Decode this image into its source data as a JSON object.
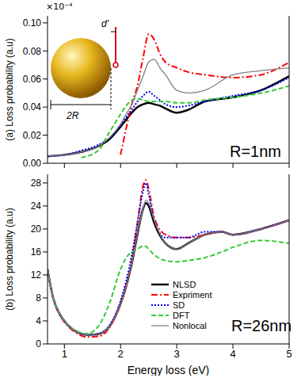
{
  "chart_data": [
    {
      "type": "line",
      "y_label": "(a) Loss probability (a.u)",
      "annotations": [
        "R=1nm",
        "×10⁻⁴",
        "d'",
        "2R"
      ],
      "tick_labels": "y",
      "x": [
        0.7,
        1.0,
        1.3,
        1.6,
        1.8,
        2.0,
        2.1,
        2.2,
        2.3,
        2.4,
        2.5,
        2.6,
        2.7,
        2.8,
        3.0,
        3.2,
        3.5,
        4.0,
        4.5,
        5.0
      ],
      "xlim": [
        0.7,
        5
      ],
      "xticks": [
        1,
        2,
        3,
        4,
        5
      ],
      "ylim": [
        0,
        0.105
      ],
      "yticks": [
        {
          "value": 0,
          "label": "0.00"
        },
        {
          "value": 0.02,
          "label": "0.02"
        },
        {
          "value": 0.04,
          "label": "0.04"
        },
        {
          "value": 0.06,
          "label": "0.06"
        },
        {
          "value": 0.08,
          "label": "0.08"
        },
        {
          "value": 0.1,
          "label": "0.10"
        }
      ],
      "series": [
        {
          "name": "NLSD",
          "color": "#000000",
          "line_style": "solid",
          "values": [
            0.005,
            0.006,
            0.008,
            0.012,
            0.017,
            0.026,
            0.031,
            0.036,
            0.04,
            0.042,
            0.043,
            0.042,
            0.041,
            0.039,
            0.036,
            0.038,
            0.044,
            0.047,
            0.052,
            0.062
          ]
        },
        {
          "name": "Expriment",
          "color": "#ff0000",
          "line_style": "dashdot",
          "values": [
            null,
            null,
            null,
            null,
            null,
            0.006,
            0.025,
            0.042,
            0.055,
            0.075,
            0.092,
            0.088,
            0.078,
            0.072,
            0.068,
            0.065,
            0.063,
            0.061,
            0.063,
            0.072
          ]
        },
        {
          "name": "SD",
          "color": "#0000ff",
          "line_style": "dotted",
          "values": [
            0.005,
            0.006,
            0.009,
            0.013,
            0.018,
            0.027,
            0.033,
            0.038,
            0.044,
            0.048,
            0.051,
            0.048,
            0.045,
            0.042,
            0.04,
            0.041,
            0.044,
            0.048,
            0.052,
            0.061
          ]
        },
        {
          "name": "DFT",
          "color": "#33cc33",
          "line_style": "dashed",
          "values": [
            null,
            null,
            0.004,
            0.009,
            0.022,
            0.035,
            0.041,
            0.045,
            0.046,
            0.045,
            0.044,
            0.044,
            0.044,
            0.044,
            0.043,
            0.043,
            0.045,
            0.047,
            0.05,
            0.055
          ]
        },
        {
          "name": "Nonlocal",
          "color": "#808080",
          "line_style": "solid",
          "values": [
            0.005,
            0.006,
            0.008,
            0.012,
            0.018,
            0.028,
            0.035,
            0.042,
            0.052,
            0.062,
            0.072,
            0.074,
            0.068,
            0.063,
            0.052,
            0.05,
            0.052,
            0.063,
            0.066,
            0.068
          ]
        }
      ]
    },
    {
      "type": "line",
      "x_label": "Energy loss (eV)",
      "y_label": "(b) Loss probability (a.u)",
      "annotations": [
        "R=26nm"
      ],
      "legend": "lower right",
      "x": [
        0.7,
        0.8,
        0.9,
        1.0,
        1.2,
        1.4,
        1.6,
        1.8,
        2.0,
        2.1,
        2.2,
        2.3,
        2.4,
        2.45,
        2.5,
        2.6,
        2.8,
        3.0,
        3.2,
        3.5,
        3.8,
        4.0,
        4.5,
        5.0
      ],
      "xlim": [
        0.7,
        5
      ],
      "xticks": [
        1,
        2,
        3,
        4,
        5
      ],
      "ylim": [
        0,
        29.5
      ],
      "yticks": [
        0,
        4,
        8,
        12,
        16,
        20,
        24,
        28
      ],
      "series": [
        {
          "name": "NLSD",
          "color": "#000000",
          "line_style": "solid",
          "values": [
            13,
            8,
            5.5,
            4,
            2.2,
            1.6,
            1.7,
            3,
            7,
            10,
            14,
            19,
            23.5,
            24.5,
            24,
            21,
            17.5,
            16.5,
            17.5,
            19,
            19.5,
            19,
            20,
            21.5
          ]
        },
        {
          "name": "Expriment",
          "color": "#ff0000",
          "line_style": "dashdot",
          "values": [
            13,
            8,
            5.3,
            3.8,
            2,
            1.2,
            1.3,
            2.8,
            7,
            10,
            14.5,
            21,
            27.5,
            28.5,
            27,
            22,
            19,
            18.5,
            18.5,
            19,
            19.5,
            19,
            20,
            21.5
          ]
        },
        {
          "name": "SD",
          "color": "#0000ff",
          "line_style": "dotted",
          "values": [
            13,
            8,
            5.5,
            4,
            2.2,
            1.6,
            1.8,
            3.2,
            7.5,
            11,
            15.5,
            21,
            26.5,
            28,
            26,
            21.5,
            18.5,
            18.5,
            18.5,
            19.5,
            19.5,
            19,
            20,
            21.5
          ]
        },
        {
          "name": "DFT",
          "color": "#33cc33",
          "line_style": "dashed",
          "values": [
            13,
            8,
            5.5,
            4,
            2.3,
            1.8,
            3,
            7,
            13,
            15,
            16,
            16.5,
            17,
            17,
            16.5,
            15.5,
            14.5,
            14.3,
            14.5,
            15,
            16,
            16.8,
            18,
            17.5
          ]
        },
        {
          "name": "Nonlocal",
          "color": "#808080",
          "line_style": "solid",
          "values": [
            13,
            8,
            5.5,
            4,
            2.2,
            1.6,
            1.7,
            3,
            7,
            10,
            14,
            19,
            23.5,
            25,
            24.5,
            21.5,
            17.5,
            16.5,
            17.5,
            19,
            19.5,
            19,
            20,
            21.5
          ]
        }
      ]
    }
  ]
}
